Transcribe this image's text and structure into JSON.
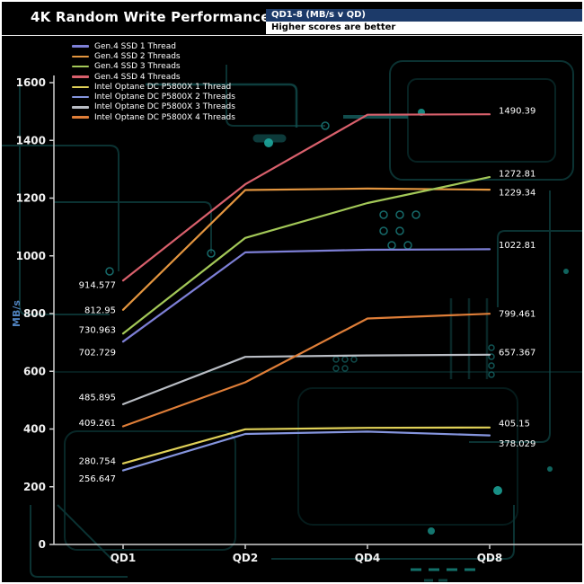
{
  "header": {
    "title": "4K Random Write Performance",
    "subtitle": "QD1-8 (MB/s v QD)",
    "note": "Higher scores are better"
  },
  "axes": {
    "y_label": "MB/s",
    "y_ticks": [
      "0",
      "200",
      "400",
      "600",
      "800",
      "1000",
      "1200",
      "1400",
      "1600"
    ],
    "x_ticks": [
      "QD1",
      "QD2",
      "QD4",
      "QD8"
    ]
  },
  "colors": {
    "background": "#000000",
    "frame_border": "#ffffff",
    "subtitle_bar": "#1c3a69",
    "note_bar": "#ffffff",
    "axis": "#cfcfcf",
    "circuit_trace": "#155c5c",
    "circuit_accent": "#22c7ba",
    "y_label_blue": "#4f81bd"
  },
  "chart_data": {
    "type": "line",
    "title": "4K Random Write Performance",
    "subtitle": "QD1-8 (MB/s v QD)",
    "note": "Higher scores are better",
    "x_categories": [
      "QD1",
      "QD2",
      "QD4",
      "QD8"
    ],
    "xlabel": "",
    "ylabel": "MB/s",
    "ylim": [
      0,
      1600
    ],
    "y_tick_step": 200,
    "grid": false,
    "legend_position": "top-left",
    "series": [
      {
        "name": "Gen.4 SSD 1 Thread",
        "color": "#7d7fd6",
        "values": [
          702.729,
          1012,
          1021,
          1022.81
        ],
        "start_label": "702.729",
        "end_label": "1022.81"
      },
      {
        "name": "Gen.4 SSD 2 Threads",
        "color": "#e3953f",
        "values": [
          812.95,
          1228,
          1233,
          1229.34
        ],
        "start_label": "812.95",
        "end_label": "1229.34"
      },
      {
        "name": "Gen.4 SSD 3 Threads",
        "color": "#a3c858",
        "values": [
          730.963,
          1062,
          1183,
          1272.81
        ],
        "start_label": "730.963",
        "end_label": "1272.81"
      },
      {
        "name": "Gen.4 SSD 4 Threads",
        "color": "#d9606c",
        "values": [
          914.577,
          1248,
          1489,
          1490.39
        ],
        "start_label": "914.577",
        "end_label": "1490.39"
      },
      {
        "name": "Intel Optane DC P5800X 1 Thread",
        "color": "#e0d158",
        "values": [
          280.754,
          399,
          404,
          405.15
        ],
        "start_label": "280.754",
        "end_label": "405.15"
      },
      {
        "name": "Intel Optane DC P5800X 2 Threads",
        "color": "#8595de",
        "values": [
          256.647,
          383,
          391,
          378.029
        ],
        "start_label": "256.647",
        "end_label": "378.029"
      },
      {
        "name": "Intel Optane DC P5800X 3 Threads",
        "color": "#b9bdc4",
        "values": [
          485.895,
          650,
          655,
          657.367
        ],
        "start_label": "485.895",
        "end_label": "657.367"
      },
      {
        "name": "Intel Optane DC P5800X 4 Threads",
        "color": "#df7e38",
        "values": [
          409.261,
          562,
          783,
          799.461
        ],
        "start_label": "409.261",
        "end_label": "799.461"
      }
    ]
  }
}
